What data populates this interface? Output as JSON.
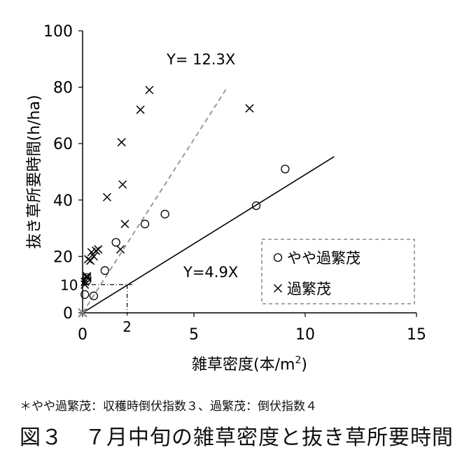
{
  "chart_data": {
    "type": "scatter",
    "xlabel": "雑草密度(本/m",
    "xlabel_sup": "2",
    "xlabel_end": ")",
    "ylabel": "抜き草所要時間(h/ha)",
    "xlim": [
      0,
      15
    ],
    "ylim": [
      0,
      100
    ],
    "x_ticks": [
      0,
      5,
      10,
      15
    ],
    "y_ticks": [
      0,
      20,
      40,
      60,
      80,
      100
    ],
    "grid": false,
    "legend_position": "bottom-right, inside dashed box",
    "series": [
      {
        "name": "やや過繁茂",
        "marker": "circle",
        "points": [
          [
            0.1,
            6.5
          ],
          [
            0.2,
            11.5
          ],
          [
            0.2,
            12.5
          ],
          [
            0.5,
            6
          ],
          [
            1.0,
            15
          ],
          [
            1.5,
            25
          ],
          [
            2.8,
            31.5
          ],
          [
            3.7,
            35
          ],
          [
            7.8,
            38
          ],
          [
            9.1,
            51
          ]
        ]
      },
      {
        "name": "過繁茂",
        "marker": "x",
        "points": [
          [
            0.1,
            10
          ],
          [
            0.1,
            11
          ],
          [
            0.2,
            12.5
          ],
          [
            0.2,
            13
          ],
          [
            0.25,
            19
          ],
          [
            0.35,
            18.5
          ],
          [
            0.4,
            21.5
          ],
          [
            0.5,
            20
          ],
          [
            0.6,
            22
          ],
          [
            0.7,
            22.5
          ],
          [
            1.1,
            41
          ],
          [
            1.7,
            22.5
          ],
          [
            1.8,
            45.5
          ],
          [
            1.9,
            31.5
          ],
          [
            1.75,
            60.5
          ],
          [
            2.6,
            72
          ],
          [
            3.0,
            79
          ],
          [
            7.5,
            72.5
          ]
        ]
      }
    ],
    "regression_lines": [
      {
        "label": "Y= 12.3X",
        "slope": 12.3,
        "style": "dashed",
        "color": "#999999",
        "x_end": 6.5
      },
      {
        "label": "Y=4.9X",
        "slope": 4.9,
        "style": "solid",
        "color": "#000000",
        "x_end": 11.3
      }
    ],
    "reference": {
      "x": 2,
      "y": 10,
      "x_label": "2",
      "y_label": "10"
    }
  },
  "note": "＊やや過繁茂：収穫時倒伏指数３、過繁茂：倒伏指数４",
  "caption": "図３　７月中旬の雑草密度と抜き草所要時間"
}
